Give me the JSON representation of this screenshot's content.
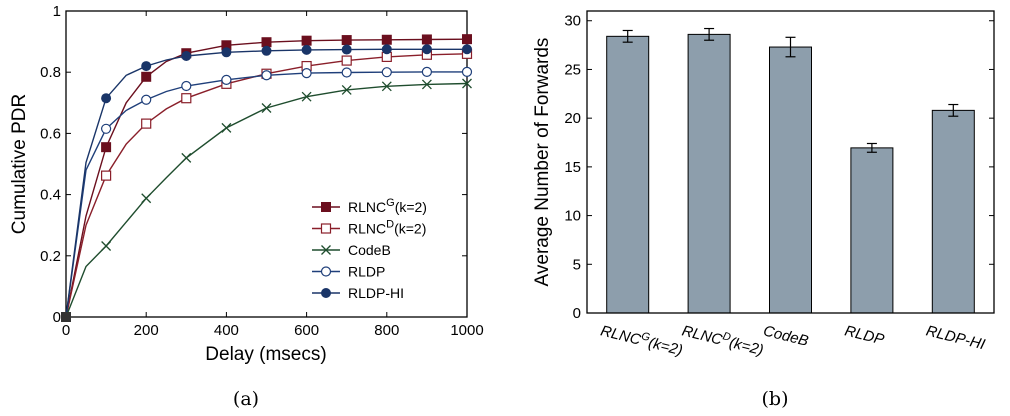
{
  "chart_data": [
    {
      "type": "line",
      "caption": "(a)",
      "xlabel": "Delay (msecs)",
      "ylabel": "Cumulative PDR",
      "xlim": [
        0,
        1000
      ],
      "ylim": [
        0,
        1
      ],
      "xticks": [
        0,
        200,
        400,
        600,
        800,
        1000
      ],
      "yticks": [
        0,
        0.2,
        0.4,
        0.6,
        0.8,
        1
      ],
      "ytick_labels": [
        "0",
        "0.2",
        "0.4",
        "0.6",
        "0.8",
        "1"
      ],
      "legend_position": "bottom-right",
      "series": [
        {
          "name": "RLNC",
          "sup": "G",
          "suffix": "(k=2)",
          "color": "#6b0f1e",
          "marker": "filled-square",
          "x": [
            0,
            50,
            100,
            150,
            200,
            250,
            300,
            400,
            500,
            600,
            700,
            800,
            900,
            1000
          ],
          "y": [
            0,
            0.33,
            0.555,
            0.7,
            0.785,
            0.835,
            0.862,
            0.888,
            0.898,
            0.903,
            0.905,
            0.906,
            0.907,
            0.908
          ],
          "marker_x": [
            100,
            200,
            300,
            400,
            500,
            600,
            700,
            800,
            900,
            1000
          ]
        },
        {
          "name": "RLNC",
          "sup": "D",
          "suffix": "(k=2)",
          "color": "#8a1f2a",
          "marker": "open-square",
          "x": [
            0,
            50,
            100,
            150,
            200,
            250,
            300,
            400,
            500,
            600,
            700,
            800,
            900,
            1000
          ],
          "y": [
            0,
            0.3,
            0.462,
            0.565,
            0.632,
            0.68,
            0.715,
            0.762,
            0.795,
            0.82,
            0.838,
            0.85,
            0.857,
            0.86
          ],
          "marker_x": [
            100,
            200,
            300,
            400,
            500,
            600,
            700,
            800,
            900,
            1000
          ]
        },
        {
          "name": "CodeB",
          "sup": "",
          "suffix": "",
          "color": "#1f4d2e",
          "marker": "x",
          "x": [
            0,
            50,
            100,
            150,
            200,
            250,
            300,
            400,
            500,
            600,
            700,
            800,
            900,
            1000
          ],
          "y": [
            0,
            0.165,
            0.232,
            0.31,
            0.388,
            0.455,
            0.52,
            0.618,
            0.683,
            0.72,
            0.742,
            0.754,
            0.76,
            0.763
          ],
          "marker_x": [
            100,
            200,
            300,
            400,
            500,
            600,
            700,
            800,
            900,
            1000
          ]
        },
        {
          "name": "RLDP",
          "sup": "",
          "suffix": "",
          "color": "#1f3f7a",
          "marker": "open-circle",
          "x": [
            0,
            50,
            100,
            150,
            200,
            250,
            300,
            400,
            500,
            600,
            700,
            800,
            900,
            1000
          ],
          "y": [
            0,
            0.48,
            0.615,
            0.675,
            0.71,
            0.737,
            0.755,
            0.775,
            0.79,
            0.797,
            0.799,
            0.8,
            0.801,
            0.801
          ],
          "marker_x": [
            100,
            200,
            300,
            400,
            500,
            600,
            700,
            800,
            900,
            1000
          ]
        },
        {
          "name": "RLDP-HI",
          "sup": "",
          "suffix": "",
          "color": "#1a3568",
          "marker": "filled-circle",
          "x": [
            0,
            50,
            100,
            150,
            200,
            250,
            300,
            400,
            500,
            600,
            700,
            800,
            900,
            1000
          ],
          "y": [
            0,
            0.505,
            0.715,
            0.79,
            0.82,
            0.84,
            0.853,
            0.865,
            0.87,
            0.873,
            0.874,
            0.875,
            0.875,
            0.875
          ],
          "marker_x": [
            100,
            200,
            300,
            400,
            500,
            600,
            700,
            800,
            900,
            1000
          ]
        }
      ]
    },
    {
      "type": "bar",
      "caption": "(b)",
      "ylabel": "Average Number of Forwards",
      "ylim": [
        0,
        31
      ],
      "yticks": [
        0,
        5,
        10,
        15,
        20,
        25,
        30
      ],
      "bar_color": "#8d9eac",
      "categories": [
        {
          "name": "RLNC",
          "sup": "G",
          "suffix": "(k=2)"
        },
        {
          "name": "RLNC",
          "sup": "D",
          "suffix": "(k=2)"
        },
        {
          "name": "CodeB",
          "sup": "",
          "suffix": ""
        },
        {
          "name": "RLDP",
          "sup": "",
          "suffix": ""
        },
        {
          "name": "RLDP-HI",
          "sup": "",
          "suffix": ""
        }
      ],
      "values": [
        28.4,
        28.6,
        27.3,
        16.95,
        20.8
      ],
      "error": [
        0.6,
        0.6,
        1.0,
        0.45,
        0.6
      ]
    }
  ]
}
